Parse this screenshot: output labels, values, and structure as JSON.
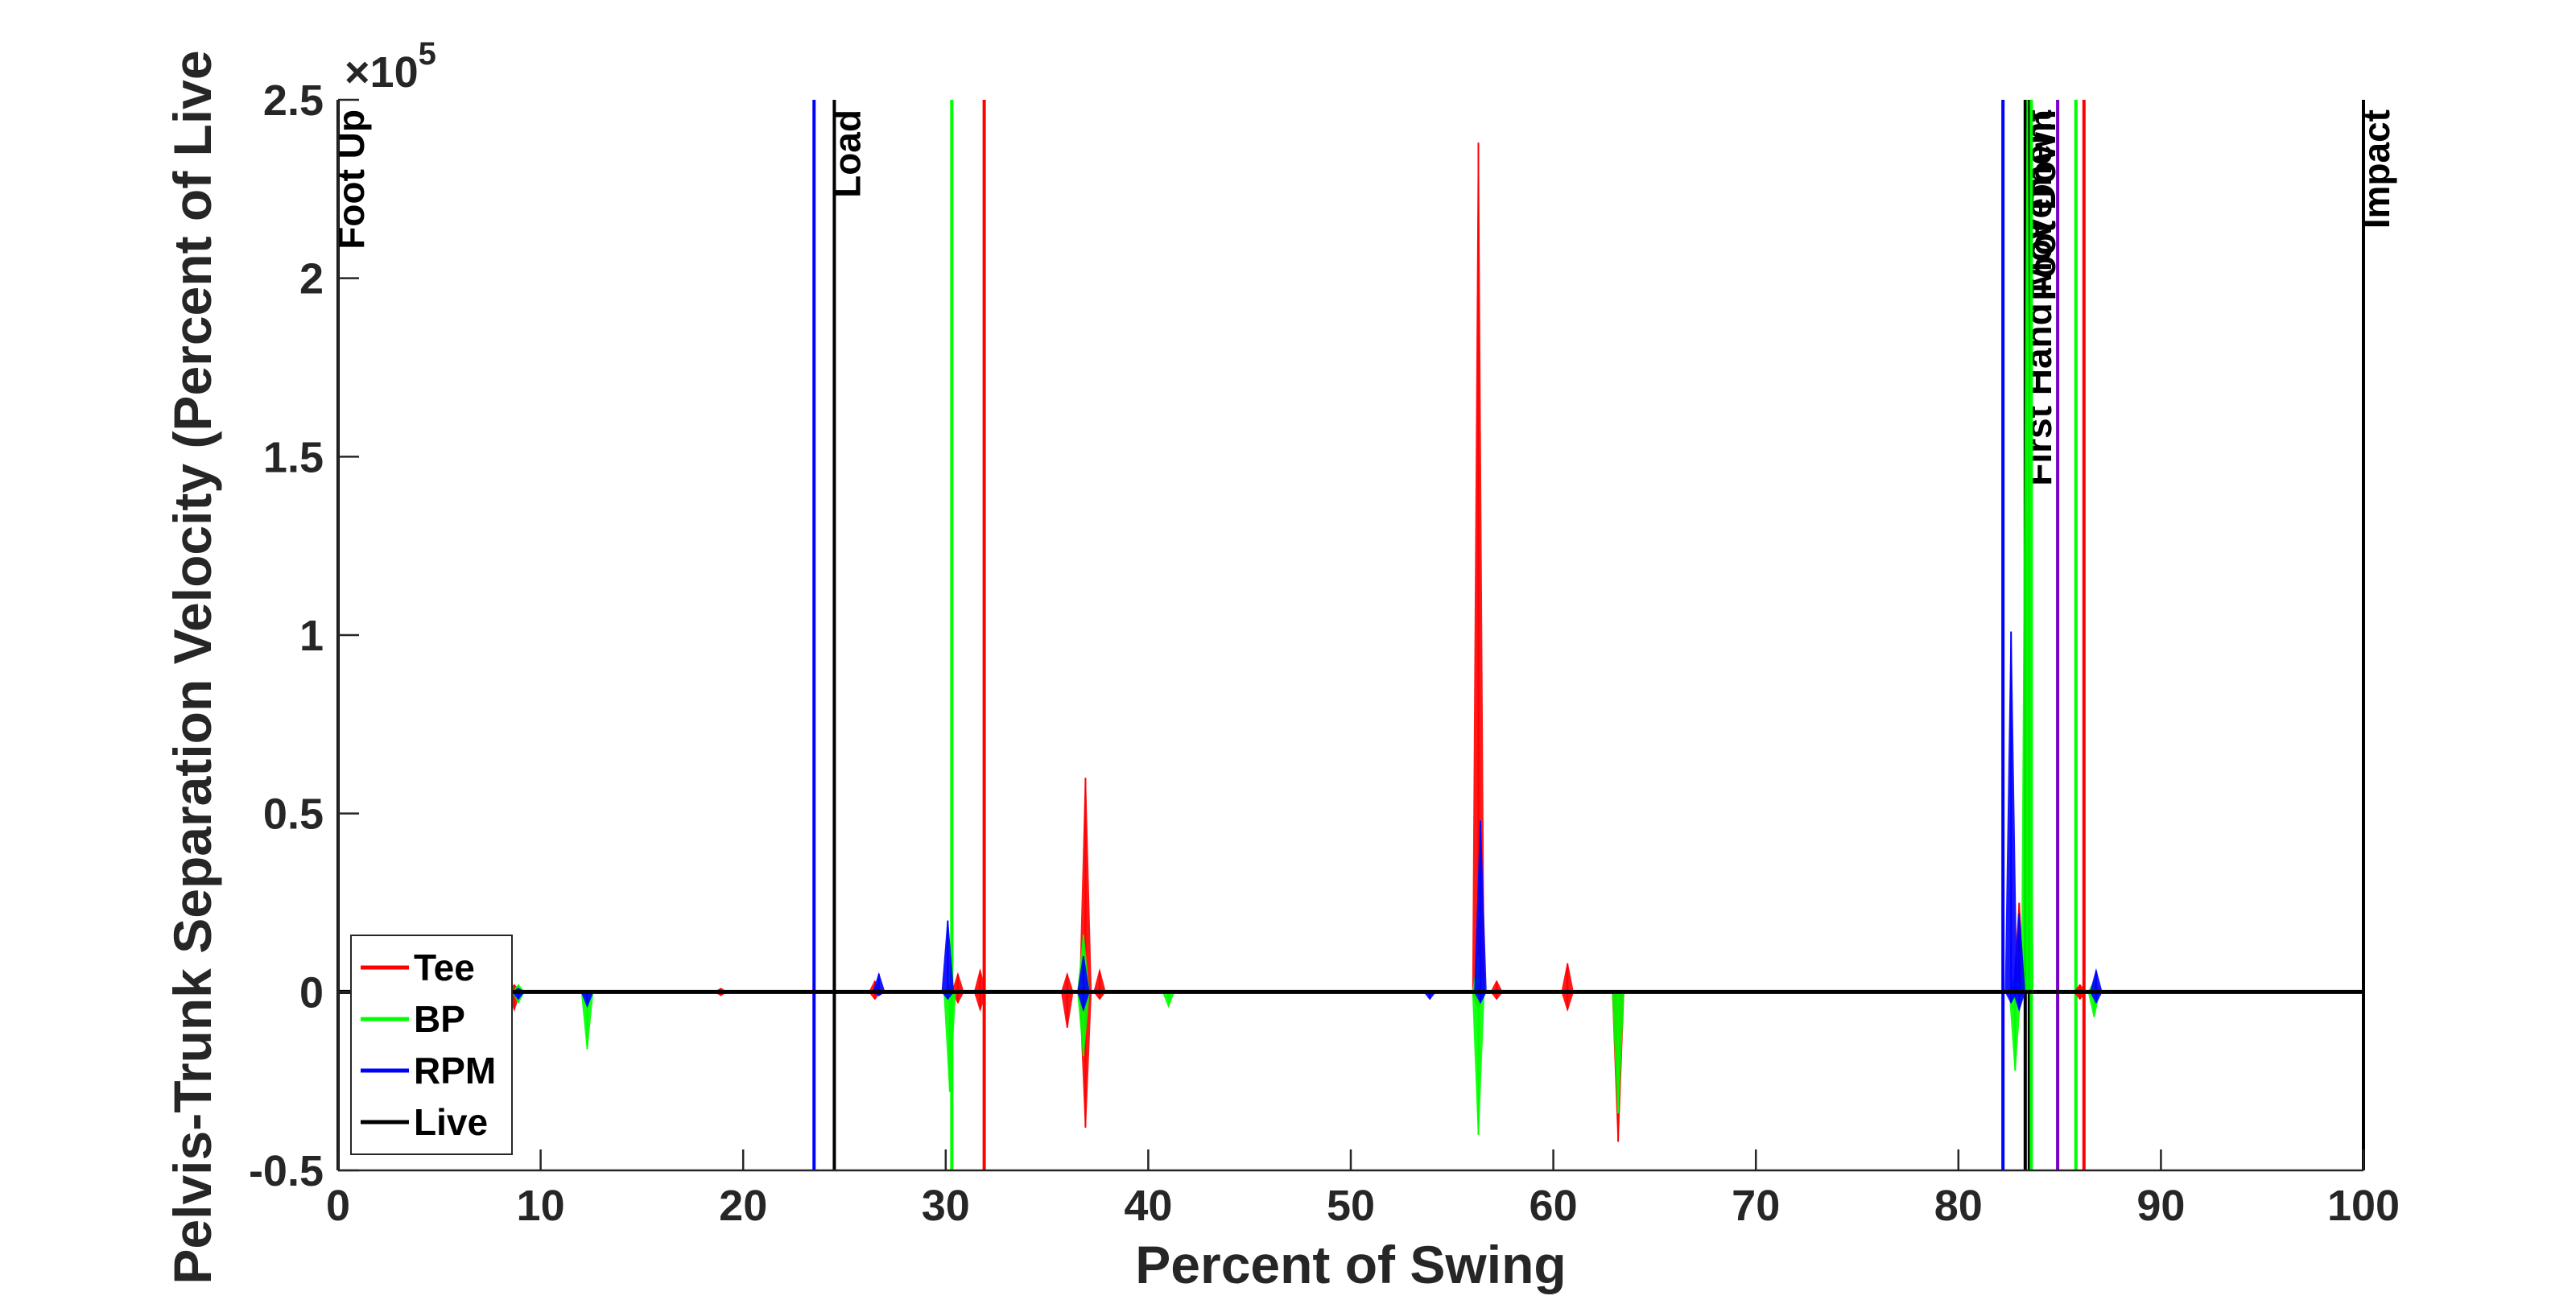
{
  "chart_data": {
    "type": "line",
    "xlabel": "Percent of Swing",
    "ylabel": "Pelvis-Trunk Separation Velocity (Percent of Live",
    "xlim": [
      0,
      100
    ],
    "ylim": [
      -0.5,
      2.5
    ],
    "y_exponent_label": {
      "base": "×10",
      "power": "5"
    },
    "xticks": [
      "0",
      "10",
      "20",
      "30",
      "40",
      "50",
      "60",
      "70",
      "80",
      "90",
      "100"
    ],
    "yticks": [
      "-0.5",
      "0",
      "0.5",
      "1",
      "1.5",
      "2",
      "2.5"
    ],
    "grid": false,
    "legend_position": "bottom-left",
    "legend": [
      {
        "name": "Tee",
        "color": "#ff0000"
      },
      {
        "name": "BP",
        "color": "#00ff00"
      },
      {
        "name": "RPM",
        "color": "#0000ff"
      },
      {
        "name": "Live",
        "color": "#000000"
      }
    ],
    "series": [
      {
        "name": "Tee",
        "color": "#ff0000",
        "spikes": [
          [
            8.7,
            -0.05,
            0.02
          ],
          [
            18.9,
            -0.01,
            0.01
          ],
          [
            26.5,
            -0.02,
            0.03
          ],
          [
            30.6,
            -0.03,
            0.05
          ],
          [
            31.7,
            -0.05,
            0.06
          ],
          [
            36.0,
            -0.1,
            0.05
          ],
          [
            36.9,
            -0.38,
            0.6
          ],
          [
            37.6,
            -0.02,
            0.06
          ],
          [
            56.3,
            -0.05,
            2.38
          ],
          [
            57.2,
            -0.02,
            0.03
          ],
          [
            60.7,
            -0.05,
            0.08
          ],
          [
            63.2,
            -0.42,
            0.0
          ],
          [
            83.0,
            -0.02,
            0.25
          ],
          [
            86.0,
            -0.02,
            0.02
          ]
        ],
        "band_points": [
          [
            0,
            -0.005,
            0.005
          ],
          [
            100,
            -0.005,
            0.005
          ]
        ]
      },
      {
        "name": "BP",
        "color": "#00ff00",
        "spikes": [
          [
            8.9,
            -0.03,
            0.02
          ],
          [
            12.3,
            -0.16,
            0.0
          ],
          [
            30.2,
            -0.28,
            0.02
          ],
          [
            36.8,
            -0.18,
            0.16
          ],
          [
            41.0,
            -0.04,
            0.0
          ],
          [
            56.3,
            -0.4,
            0.1
          ],
          [
            63.2,
            -0.34,
            0.0
          ],
          [
            82.8,
            -0.22,
            0.05
          ],
          [
            83.4,
            0.05,
            2.5
          ],
          [
            86.7,
            -0.07,
            0.03
          ]
        ],
        "band_points": [
          [
            0,
            -0.005,
            0.005
          ],
          [
            100,
            -0.005,
            0.005
          ]
        ]
      },
      {
        "name": "RPM",
        "color": "#0000ff",
        "spikes": [
          [
            8.9,
            -0.02,
            0.01
          ],
          [
            12.3,
            -0.04,
            0.0
          ],
          [
            26.7,
            -0.01,
            0.05
          ],
          [
            30.1,
            -0.02,
            0.2
          ],
          [
            36.8,
            -0.05,
            0.1
          ],
          [
            53.9,
            -0.02,
            0.0
          ],
          [
            56.4,
            -0.03,
            0.48
          ],
          [
            82.6,
            -0.03,
            1.01
          ],
          [
            83.0,
            -0.05,
            0.22
          ],
          [
            86.8,
            -0.03,
            0.06
          ]
        ],
        "band_points": [
          [
            0,
            -0.005,
            0.005
          ],
          [
            100,
            -0.005,
            0.005
          ]
        ]
      },
      {
        "name": "Live",
        "color": "#000000",
        "values_flat": 0
      }
    ],
    "event_lines": [
      {
        "label": "Foot Up",
        "x": 0.0,
        "color": "#000000"
      },
      {
        "label": "",
        "x": 23.5,
        "color": "#0000ff"
      },
      {
        "label": "Load",
        "x": 24.5,
        "color": "#000000"
      },
      {
        "label": "",
        "x": 30.3,
        "color": "#00ff00"
      },
      {
        "label": "",
        "x": 31.9,
        "color": "#ff0000"
      },
      {
        "label": "",
        "x": 82.2,
        "color": "#0000ff"
      },
      {
        "label": "First Hand Movement",
        "x": 83.3,
        "color": "#000000"
      },
      {
        "label": "Foot Down",
        "x": 83.5,
        "color": "#000000"
      },
      {
        "label": "",
        "x": 83.6,
        "color": "#00ff00"
      },
      {
        "label": "",
        "x": 84.9,
        "color": "#7a00cc"
      },
      {
        "label": "",
        "x": 85.8,
        "color": "#00ff00"
      },
      {
        "label": "",
        "x": 86.2,
        "color": "#ff0000"
      },
      {
        "label": "Impact",
        "x": 100.0,
        "color": "#000000"
      }
    ]
  }
}
